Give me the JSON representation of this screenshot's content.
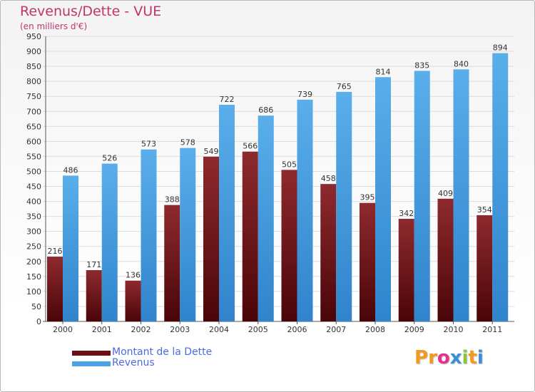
{
  "header": {
    "title": "Revenus/Dette - VUE",
    "subtitle": "(en milliers d'€)"
  },
  "chart_data": {
    "type": "bar",
    "categories": [
      "2000",
      "2001",
      "2002",
      "2003",
      "2004",
      "2005",
      "2006",
      "2007",
      "2008",
      "2009",
      "2010",
      "2011"
    ],
    "series": [
      {
        "name": "Montant de la Dette",
        "values": [
          216,
          171,
          136,
          388,
          549,
          566,
          505,
          458,
          395,
          342,
          409,
          354
        ],
        "color": "#7a1c22"
      },
      {
        "name": "Revenus",
        "values": [
          486,
          526,
          573,
          578,
          722,
          686,
          739,
          765,
          814,
          835,
          840,
          894
        ],
        "color": "#4aa3e6"
      }
    ],
    "yticks": [
      0,
      50,
      100,
      150,
      200,
      250,
      300,
      350,
      400,
      450,
      500,
      550,
      600,
      650,
      700,
      750,
      800,
      850,
      900,
      950
    ],
    "ylim": [
      0,
      950
    ],
    "grid": true,
    "legend": "bottom-left"
  },
  "legend": {
    "items": [
      {
        "label": "Montant de la Dette",
        "color": "#6b0f14"
      },
      {
        "label": "Revenus",
        "color": "#4aa3e6"
      }
    ]
  },
  "logo": {
    "text": "Proxiti",
    "letters": [
      {
        "ch": "P",
        "color": "#f39a1e"
      },
      {
        "ch": "r",
        "color": "#f39a1e"
      },
      {
        "ch": "o",
        "color": "#e5308c"
      },
      {
        "ch": "x",
        "color": "#3b8fd9"
      },
      {
        "ch": "i",
        "color": "#8cc43f"
      },
      {
        "ch": "t",
        "color": "#f39a1e"
      },
      {
        "ch": "i",
        "color": "#3b8fd9"
      }
    ]
  }
}
